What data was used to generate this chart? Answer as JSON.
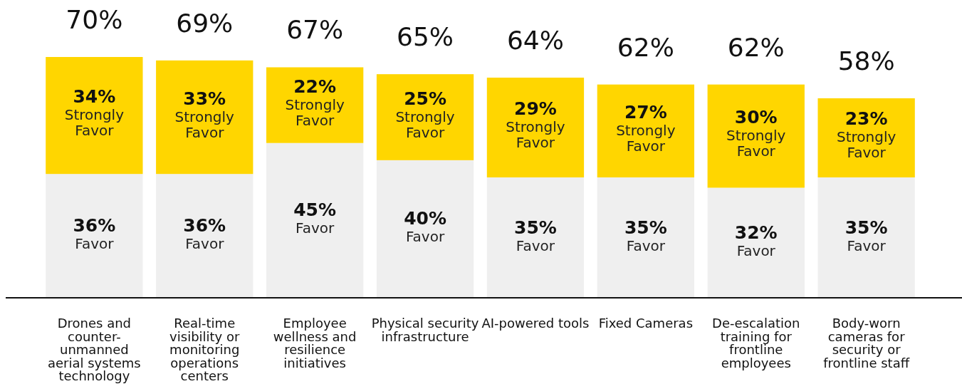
{
  "chart_data": {
    "type": "bar",
    "stacked": true,
    "legend": false,
    "categories": [
      "Drones and counter-unmanned aerial systems technology",
      "Real-time visibility or monitoring operations centers",
      "Employee wellness and resilience initiatives",
      "Physical security infrastructure",
      "AI-powered tools",
      "Fixed Cameras",
      "De-escalation training for frontline employees",
      "Body-worn cameras for security or frontline staff"
    ],
    "series": [
      {
        "name": "Favor",
        "color": "#efefef",
        "values": [
          36,
          36,
          45,
          40,
          35,
          35,
          32,
          35
        ],
        "value_labels": [
          "36%",
          "36%",
          "45%",
          "40%",
          "35%",
          "35%",
          "32%",
          "35%"
        ]
      },
      {
        "name": "Strongly Favor",
        "color": "#ffd600",
        "values": [
          34,
          33,
          22,
          25,
          29,
          27,
          30,
          23
        ],
        "value_labels": [
          "34%",
          "33%",
          "22%",
          "25%",
          "29%",
          "27%",
          "30%",
          "23%"
        ]
      }
    ],
    "totals": [
      "70%",
      "69%",
      "67%",
      "65%",
      "64%",
      "62%",
      "62%",
      "58%"
    ]
  }
}
